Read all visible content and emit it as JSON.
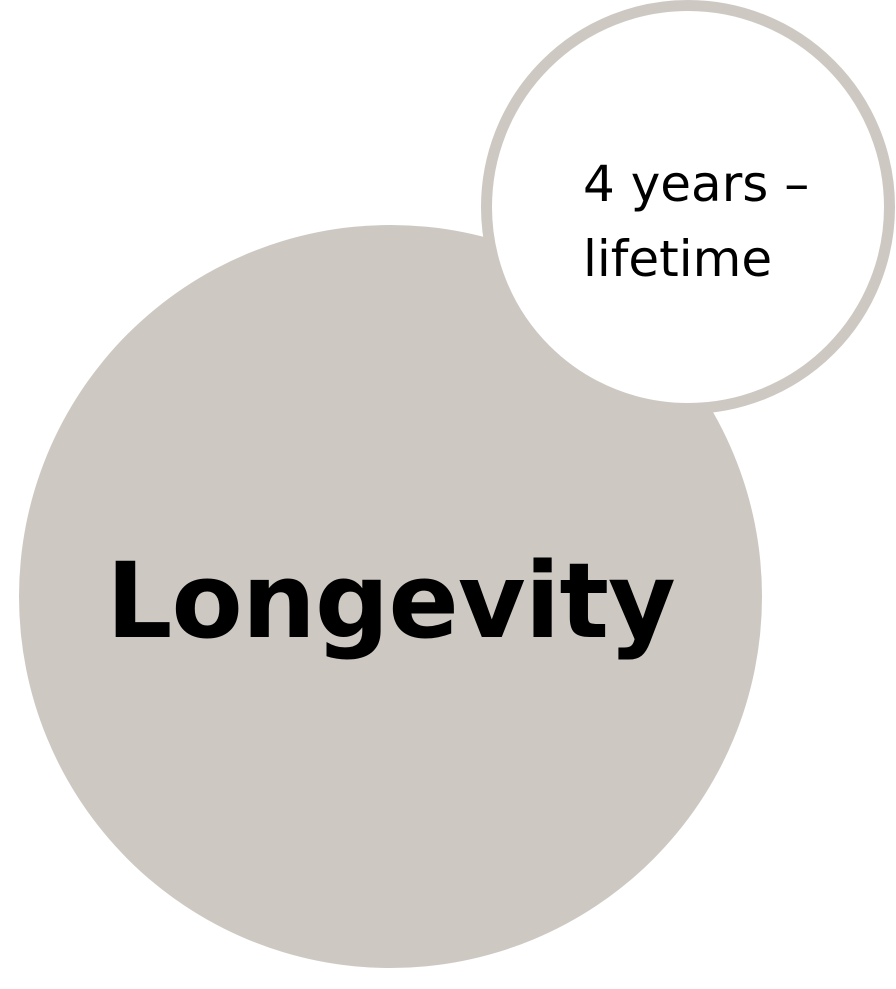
{
  "diagram": {
    "main_circle": {
      "label": "Longevity",
      "fill_color": "#cdc8c2"
    },
    "detail_circle": {
      "label": "4 years –\nlifetime",
      "fill_color": "#ffffff",
      "border_color": "#cdc8c2"
    }
  }
}
